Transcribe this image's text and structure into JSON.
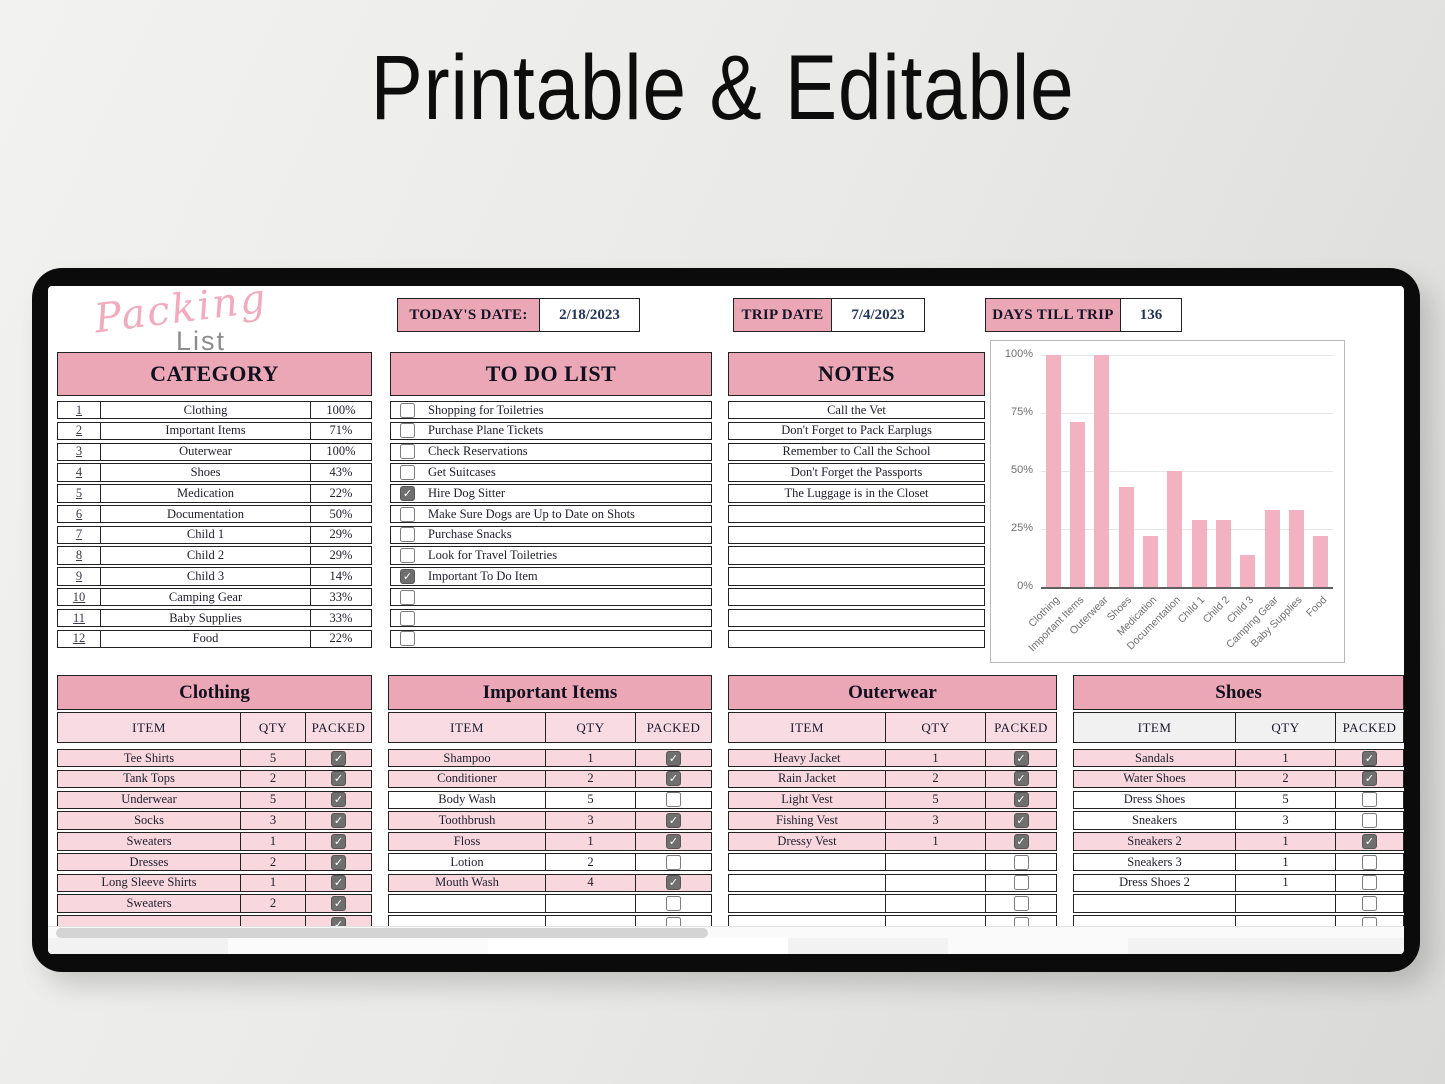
{
  "page": {
    "title": "Printable & Editable"
  },
  "logo": {
    "script": "Packing",
    "sub": "List"
  },
  "info_boxes": {
    "today": {
      "label": "TODAY'S DATE:",
      "value": "2/18/2023"
    },
    "trip": {
      "label": "TRIP DATE",
      "value": "7/4/2023"
    },
    "days": {
      "label": "DAYS TILL TRIP",
      "value": "136"
    }
  },
  "category": {
    "title": "CATEGORY",
    "rows": [
      {
        "num": "1",
        "name": "Clothing",
        "pct": "100%"
      },
      {
        "num": "2",
        "name": "Important Items",
        "pct": "71%"
      },
      {
        "num": "3",
        "name": "Outerwear",
        "pct": "100%"
      },
      {
        "num": "4",
        "name": "Shoes",
        "pct": "43%"
      },
      {
        "num": "5",
        "name": "Medication",
        "pct": "22%"
      },
      {
        "num": "6",
        "name": "Documentation",
        "pct": "50%"
      },
      {
        "num": "7",
        "name": "Child 1",
        "pct": "29%"
      },
      {
        "num": "8",
        "name": "Child 2",
        "pct": "29%"
      },
      {
        "num": "9",
        "name": "Child 3",
        "pct": "14%"
      },
      {
        "num": "10",
        "name": "Camping Gear",
        "pct": "33%"
      },
      {
        "num": "11",
        "name": "Baby Supplies",
        "pct": "33%"
      },
      {
        "num": "12",
        "name": "Food",
        "pct": "22%"
      }
    ]
  },
  "todo": {
    "title": "TO DO LIST",
    "items": [
      {
        "label": "Shopping for Toiletries",
        "checked": false
      },
      {
        "label": "Purchase Plane Tickets",
        "checked": false
      },
      {
        "label": "Check Reservations",
        "checked": false
      },
      {
        "label": "Get Suitcases",
        "checked": false
      },
      {
        "label": "Hire Dog Sitter",
        "checked": true
      },
      {
        "label": "Make Sure Dogs are Up to Date on Shots",
        "checked": false
      },
      {
        "label": "Purchase Snacks",
        "checked": false
      },
      {
        "label": "Look for Travel Toiletries",
        "checked": false
      },
      {
        "label": "Important To Do Item",
        "checked": true
      },
      {
        "label": "",
        "checked": false
      },
      {
        "label": "",
        "checked": false
      },
      {
        "label": "",
        "checked": false
      }
    ]
  },
  "notes": {
    "title": "NOTES",
    "rows": [
      "Call the Vet",
      "Don't Forget to Pack Earplugs",
      "Remember to Call the School",
      "Don't Forget the Passports",
      "The Luggage is in the Closet",
      "",
      "",
      "",
      "",
      "",
      "",
      ""
    ]
  },
  "chart_data": {
    "type": "bar",
    "title": "",
    "categories": [
      "Clothing",
      "Important Items",
      "Outerwear",
      "Shoes",
      "Medication",
      "Documentation",
      "Child 1",
      "Child 2",
      "Child 3",
      "Camping Gear",
      "Baby Supplies",
      "Food"
    ],
    "values": [
      100,
      71,
      100,
      43,
      22,
      50,
      29,
      29,
      14,
      33,
      33,
      22
    ],
    "y_ticks": [
      "0%",
      "25%",
      "50%",
      "75%",
      "100%"
    ],
    "ylim": [
      0,
      100
    ],
    "grid": true,
    "legend_position": "none",
    "bar_color": "#f2b2c2"
  },
  "packing_tables": [
    {
      "title": "Clothing",
      "columns": [
        "ITEM",
        "QTY",
        "PACKED"
      ],
      "header_tint": "pink",
      "rows": [
        {
          "item": "Tee Shirts",
          "qty": "5",
          "packed": true
        },
        {
          "item": "Tank Tops",
          "qty": "2",
          "packed": true
        },
        {
          "item": "Underwear",
          "qty": "5",
          "packed": true
        },
        {
          "item": "Socks",
          "qty": "3",
          "packed": true
        },
        {
          "item": "Sweaters",
          "qty": "1",
          "packed": true
        },
        {
          "item": "Dresses",
          "qty": "2",
          "packed": true
        },
        {
          "item": "Long Sleeve Shirts",
          "qty": "1",
          "packed": true
        },
        {
          "item": "Sweaters",
          "qty": "2",
          "packed": true
        },
        {
          "item": "",
          "qty": "",
          "packed": true
        }
      ]
    },
    {
      "title": "Important Items",
      "columns": [
        "ITEM",
        "QTY",
        "PACKED"
      ],
      "header_tint": "pink",
      "rows": [
        {
          "item": "Shampoo",
          "qty": "1",
          "packed": true
        },
        {
          "item": "Conditioner",
          "qty": "2",
          "packed": true
        },
        {
          "item": "Body Wash",
          "qty": "5",
          "packed": false
        },
        {
          "item": "Toothbrush",
          "qty": "3",
          "packed": true
        },
        {
          "item": "Floss",
          "qty": "1",
          "packed": true
        },
        {
          "item": "Lotion",
          "qty": "2",
          "packed": false
        },
        {
          "item": "Mouth Wash",
          "qty": "4",
          "packed": true
        },
        {
          "item": "",
          "qty": "",
          "packed": false
        },
        {
          "item": "",
          "qty": "",
          "packed": false
        }
      ]
    },
    {
      "title": "Outerwear",
      "columns": [
        "ITEM",
        "QTY",
        "PACKED"
      ],
      "header_tint": "pink",
      "rows": [
        {
          "item": "Heavy Jacket",
          "qty": "1",
          "packed": true
        },
        {
          "item": "Rain Jacket",
          "qty": "2",
          "packed": true
        },
        {
          "item": "Light Vest",
          "qty": "5",
          "packed": true
        },
        {
          "item": "Fishing Vest",
          "qty": "3",
          "packed": true
        },
        {
          "item": "Dressy Vest",
          "qty": "1",
          "packed": true
        },
        {
          "item": "",
          "qty": "",
          "packed": false
        },
        {
          "item": "",
          "qty": "",
          "packed": false
        },
        {
          "item": "",
          "qty": "",
          "packed": false
        },
        {
          "item": "",
          "qty": "",
          "packed": false
        }
      ]
    },
    {
      "title": "Shoes",
      "columns": [
        "ITEM",
        "QTY",
        "PACKED"
      ],
      "header_tint": "gray",
      "rows": [
        {
          "item": "Sandals",
          "qty": "1",
          "packed": true
        },
        {
          "item": "Water Shoes",
          "qty": "2",
          "packed": true
        },
        {
          "item": "Dress Shoes",
          "qty": "5",
          "packed": false
        },
        {
          "item": "Sneakers",
          "qty": "3",
          "packed": false
        },
        {
          "item": "Sneakers 2",
          "qty": "1",
          "packed": true
        },
        {
          "item": "Sneakers 3",
          "qty": "1",
          "packed": false
        },
        {
          "item": "Dress Shoes 2",
          "qty": "1",
          "packed": false
        },
        {
          "item": "",
          "qty": "",
          "packed": false
        },
        {
          "item": "",
          "qty": "",
          "packed": false
        }
      ]
    }
  ],
  "colors": {
    "header_pink": "#eba7b5",
    "row_pink": "#f8d7de",
    "column_header_pink": "#f9dce3",
    "column_header_gray": "#f1f1f1",
    "bar_pink": "#f2b2c2",
    "checkbox_gray": "#6f6f6f"
  }
}
